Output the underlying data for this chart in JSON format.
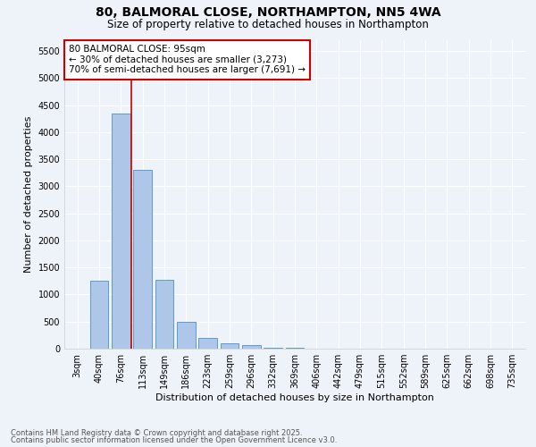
{
  "title": "80, BALMORAL CLOSE, NORTHAMPTON, NN5 4WA",
  "subtitle": "Size of property relative to detached houses in Northampton",
  "xlabel": "Distribution of detached houses by size in Northampton",
  "ylabel": "Number of detached properties",
  "bar_labels": [
    "3sqm",
    "40sqm",
    "76sqm",
    "113sqm",
    "149sqm",
    "186sqm",
    "223sqm",
    "259sqm",
    "296sqm",
    "332sqm",
    "369sqm",
    "406sqm",
    "442sqm",
    "479sqm",
    "515sqm",
    "552sqm",
    "589sqm",
    "625sqm",
    "662sqm",
    "698sqm",
    "735sqm"
  ],
  "bar_values": [
    0,
    1260,
    4350,
    3300,
    1280,
    500,
    200,
    100,
    60,
    20,
    10,
    5,
    0,
    0,
    0,
    0,
    0,
    0,
    0,
    0,
    0
  ],
  "bar_color": "#aec6e8",
  "bar_edge_color": "#5b9bd5",
  "vline_x": 2.5,
  "vline_color": "#cc0000",
  "annotation_text": "80 BALMORAL CLOSE: 95sqm\n← 30% of detached houses are smaller (3,273)\n70% of semi-detached houses are larger (7,691) →",
  "annotation_box_color": "#ffffff",
  "annotation_border_color": "#cc0000",
  "ylim": [
    0,
    5700
  ],
  "yticks": [
    0,
    500,
    1000,
    1500,
    2000,
    2500,
    3000,
    3500,
    4000,
    4500,
    5000,
    5500
  ],
  "footnote1": "Contains HM Land Registry data © Crown copyright and database right 2025.",
  "footnote2": "Contains public sector information licensed under the Open Government Licence v3.0.",
  "bg_color": "#eef2f9",
  "grid_color": "#ffffff",
  "title_fontsize": 10,
  "subtitle_fontsize": 8.5,
  "tick_fontsize": 7,
  "ylabel_fontsize": 8,
  "xlabel_fontsize": 8,
  "footnote_fontsize": 6,
  "annotation_fontsize": 7.5
}
